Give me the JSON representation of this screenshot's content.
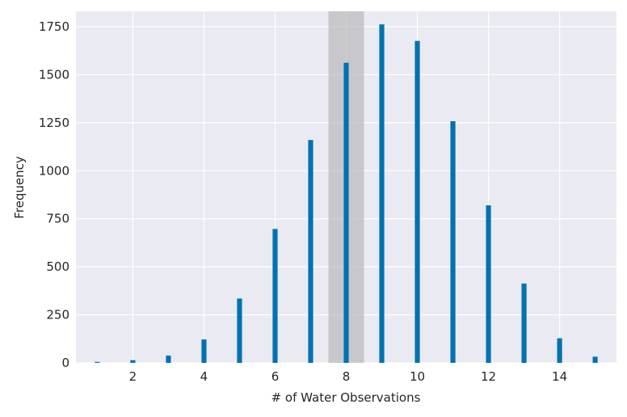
{
  "chart_data": {
    "type": "bar",
    "title": "",
    "xlabel": "# of Water Observations",
    "ylabel": "Frequency",
    "xlim": [
      0.4,
      15.6
    ],
    "ylim": [
      0,
      1830
    ],
    "xticks": [
      2,
      4,
      6,
      8,
      10,
      12,
      14
    ],
    "yticks": [
      0,
      250,
      500,
      750,
      1000,
      1250,
      1500,
      1750
    ],
    "grid": true,
    "bar_width": 0.14,
    "highlight": {
      "x_start": 7.5,
      "x_end": 8.5,
      "color": "#a9a9ad"
    },
    "series": [
      {
        "name": "Frequency",
        "color": "#0072b2",
        "x": [
          1,
          2,
          3,
          4,
          5,
          6,
          7,
          8,
          9,
          10,
          11,
          12,
          13,
          14,
          15
        ],
        "values": [
          5,
          14,
          38,
          122,
          335,
          697,
          1160,
          1562,
          1762,
          1676,
          1258,
          820,
          413,
          128,
          32
        ]
      }
    ]
  },
  "colors": {
    "background": "#eaeaf2",
    "grid": "#ffffff",
    "text": "#262626"
  }
}
